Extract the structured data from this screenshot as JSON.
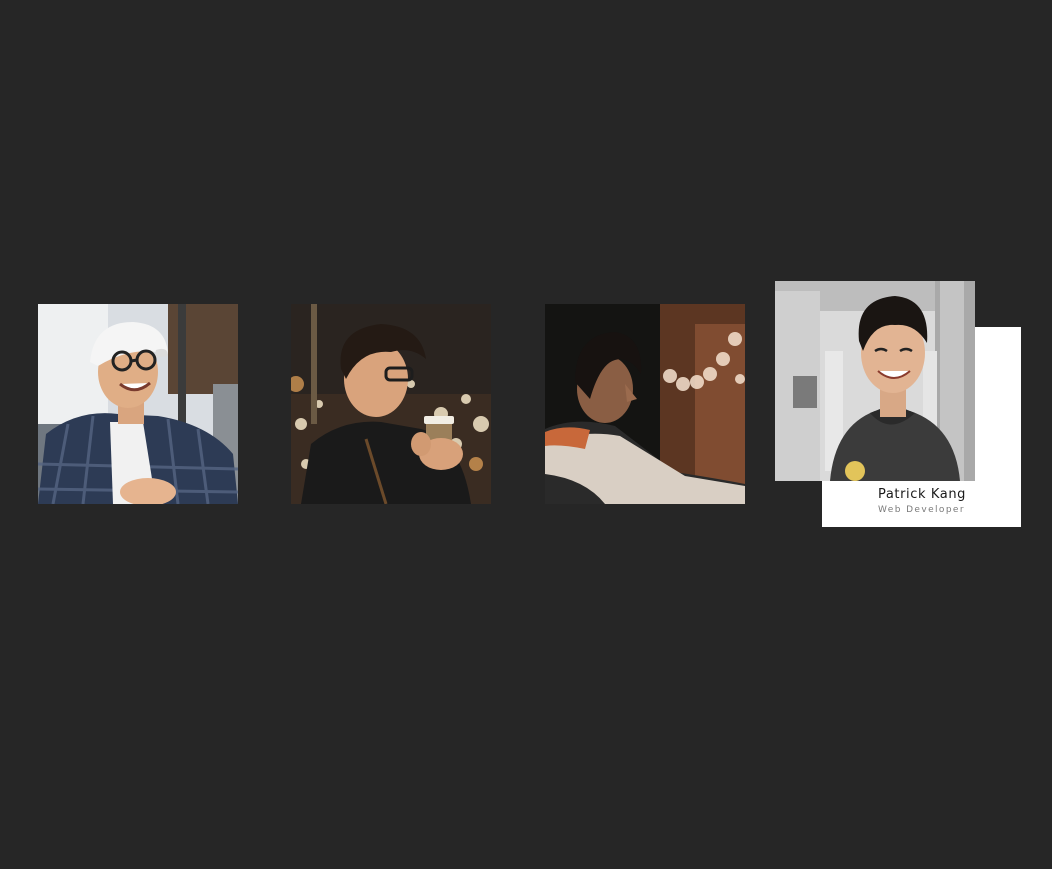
{
  "background_color": "#262626",
  "team": {
    "members": [
      {
        "photo_icon": "person-cap-photo-icon"
      },
      {
        "photo_icon": "person-coffee-photo-icon"
      },
      {
        "photo_icon": "person-profile-photo-icon"
      },
      {
        "photo_icon": "person-smile-photo-icon",
        "name": "Patrick Kang",
        "role": "Web Developer"
      }
    ]
  }
}
